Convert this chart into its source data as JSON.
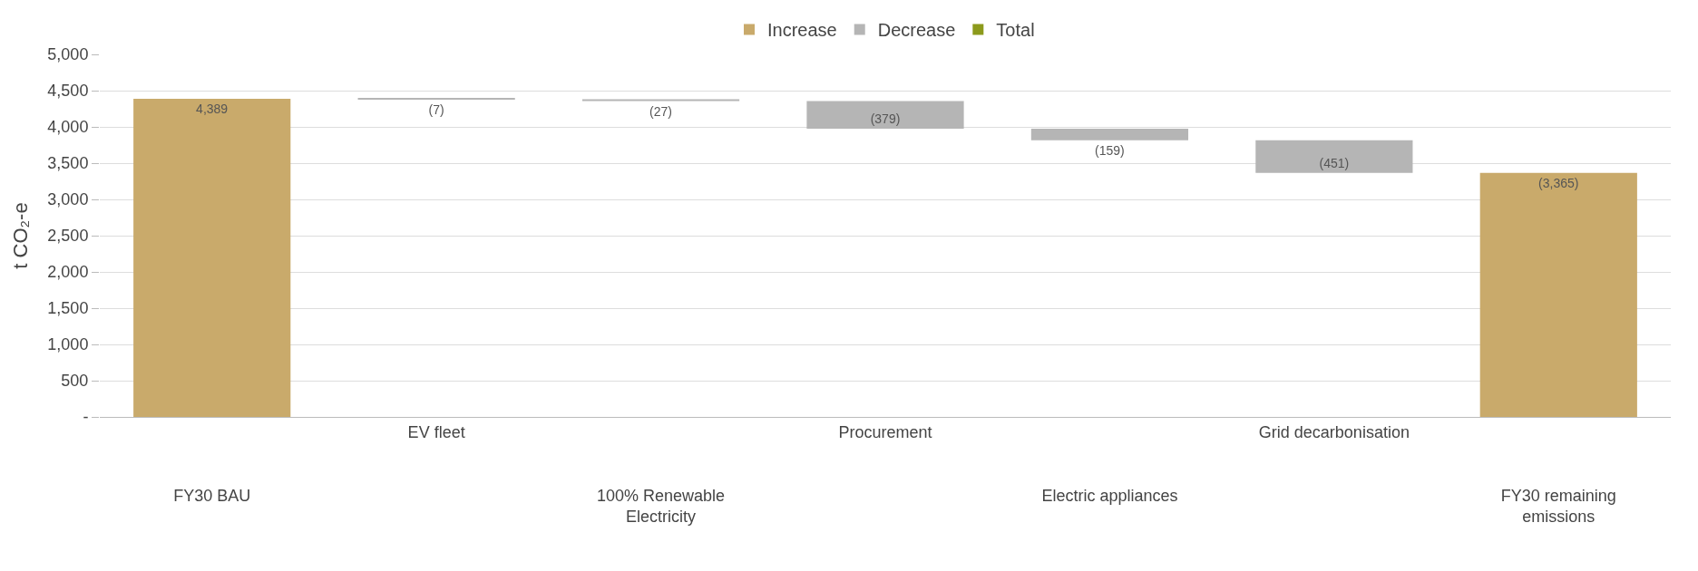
{
  "chart_data": {
    "type": "bar",
    "ylabel": "t CO₂-e",
    "categories": [
      "FY30 BAU",
      "EV fleet",
      "100% Renewable Electricity",
      "Procurement",
      "Electric appliances",
      "Grid decarbonisation",
      "FY30 remaining emissions"
    ],
    "series": [
      {
        "name": "Increase",
        "color": "#c9aa6b",
        "values": [
          4389,
          null,
          null,
          null,
          null,
          null,
          3365
        ],
        "base": [
          0,
          null,
          null,
          null,
          null,
          null,
          0
        ],
        "value_labels": [
          "4,389",
          null,
          null,
          null,
          null,
          null,
          "(3,365)"
        ]
      },
      {
        "name": "Decrease",
        "color": "#b5b5b5",
        "values": [
          null,
          -7,
          -27,
          -379,
          -159,
          -451,
          null
        ],
        "base": [
          null,
          4389,
          4382,
          4355,
          3976,
          3817,
          null
        ],
        "value_labels": [
          null,
          "(7)",
          "(27)",
          "(379)",
          "(159)",
          "(451)",
          null
        ]
      },
      {
        "name": "Total",
        "color": "#8c9a1c",
        "values": [
          null,
          null,
          null,
          null,
          null,
          null,
          null
        ]
      }
    ],
    "ylim": [
      0,
      5000
    ],
    "yticks": [
      {
        "value": 0,
        "label": "-"
      },
      {
        "value": 500,
        "label": "500"
      },
      {
        "value": 1000,
        "label": "1,000"
      },
      {
        "value": 1500,
        "label": "1,500"
      },
      {
        "value": 2000,
        "label": "2,000"
      },
      {
        "value": 2500,
        "label": "2,500"
      },
      {
        "value": 3000,
        "label": "3,000"
      },
      {
        "value": 3500,
        "label": "3,500"
      },
      {
        "value": 4000,
        "label": "4,000"
      },
      {
        "value": 4500,
        "label": "4,500"
      },
      {
        "value": 5000,
        "label": "5,000"
      }
    ],
    "grid": "y",
    "legend": "top"
  }
}
